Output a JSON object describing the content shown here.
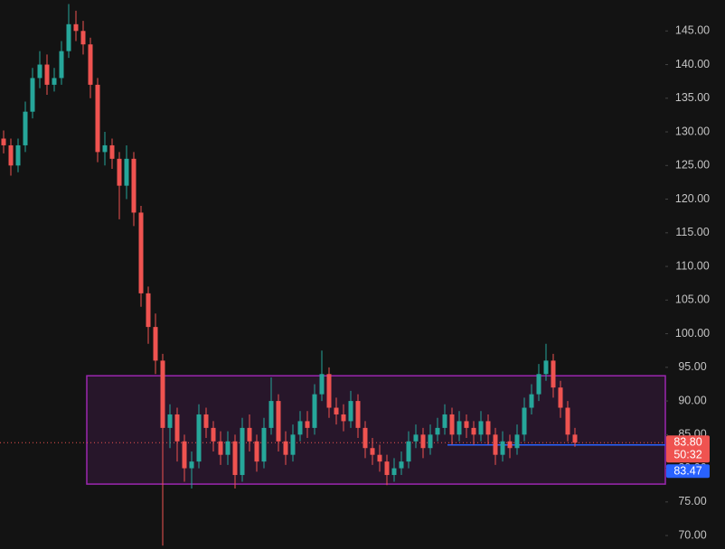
{
  "chart_data": {
    "type": "candlestick",
    "ylim": [
      68,
      149.6
    ],
    "yticks": [
      {
        "value": 70,
        "label": "70.00"
      },
      {
        "value": 75,
        "label": "75.00"
      },
      {
        "value": 80,
        "label": "80.00"
      },
      {
        "value": 85,
        "label": "85.00"
      },
      {
        "value": 90,
        "label": "90.00"
      },
      {
        "value": 95,
        "label": "95.00"
      },
      {
        "value": 100,
        "label": "100.00"
      },
      {
        "value": 105,
        "label": "105.00"
      },
      {
        "value": 110,
        "label": "110.00"
      },
      {
        "value": 115,
        "label": "115.00"
      },
      {
        "value": 120,
        "label": "120.00"
      },
      {
        "value": 125,
        "label": "125.00"
      },
      {
        "value": 130,
        "label": "130.00"
      },
      {
        "value": 135,
        "label": "135.00"
      },
      {
        "value": 140,
        "label": "140.00"
      },
      {
        "value": 145,
        "label": "145.00"
      }
    ],
    "up_color": "#26a69a",
    "down_color": "#ef5350",
    "open": [
      129,
      128,
      125,
      128,
      133,
      138,
      140,
      137,
      138,
      142,
      146,
      145,
      143,
      137,
      127,
      128,
      126,
      122,
      126,
      118,
      106,
      101,
      96,
      86,
      88,
      84,
      80,
      81,
      88,
      86,
      84,
      82,
      84,
      79,
      86,
      84,
      81,
      86,
      90,
      84,
      82,
      85,
      87,
      86,
      91,
      94,
      89,
      88,
      87,
      90,
      86,
      83,
      82,
      81,
      79,
      80,
      81,
      84,
      85,
      83,
      85,
      86,
      88,
      85,
      87,
      86,
      85,
      87,
      85,
      82,
      84,
      83,
      85,
      89,
      91,
      94,
      96,
      92,
      89,
      85
    ],
    "high": [
      130.2,
      129,
      129,
      134.5,
      139.5,
      142,
      141.5,
      139.5,
      143.5,
      149,
      148,
      146.5,
      144,
      138,
      130,
      129,
      127,
      128,
      127,
      119,
      107,
      103,
      97,
      89.5,
      89,
      85,
      82.5,
      89.5,
      89,
      87,
      85.5,
      85.5,
      85,
      87.5,
      88,
      85,
      87.5,
      93.5,
      91,
      85.5,
      86.5,
      88.5,
      88.5,
      92.5,
      97.5,
      95,
      90.5,
      89.5,
      91.5,
      91,
      87,
      84.5,
      83.5,
      82,
      81.5,
      82.5,
      85.5,
      86.5,
      86,
      86.5,
      87.5,
      89.5,
      89,
      88.5,
      88,
      87,
      88.5,
      88,
      86,
      85.5,
      85,
      86.5,
      90.5,
      92.5,
      95.5,
      98.5,
      97,
      93,
      90,
      86
    ],
    "low": [
      126.8,
      123.5,
      124,
      127,
      132,
      136.5,
      135.5,
      136,
      137,
      141,
      143.5,
      141.5,
      135,
      125.5,
      125,
      124.5,
      117,
      120,
      116,
      104,
      98.5,
      94,
      68.5,
      83,
      81,
      78,
      77,
      80,
      84.5,
      82.5,
      80.5,
      80.5,
      77,
      78,
      82.5,
      79.5,
      80,
      85,
      82.5,
      80.5,
      81,
      84,
      84.5,
      85,
      90,
      87.5,
      86.5,
      85.5,
      86,
      84.5,
      81.5,
      80.5,
      79.5,
      77.5,
      78,
      79,
      80,
      83,
      81.5,
      82,
      84,
      85,
      83.5,
      84,
      84.5,
      83.5,
      84,
      83.5,
      80.5,
      81,
      81.5,
      82,
      84,
      88,
      90,
      93,
      90.5,
      87.5,
      84,
      83.2
    ],
    "close": [
      128,
      125,
      128,
      133,
      138,
      140,
      137,
      138,
      142,
      146,
      145,
      143,
      137,
      127,
      128,
      126,
      122,
      126,
      118,
      106,
      101,
      96,
      86,
      88,
      84,
      80,
      81,
      88,
      86,
      84,
      82,
      84,
      79,
      86,
      84,
      81,
      86,
      90,
      84,
      82,
      85,
      87,
      86,
      91,
      94,
      89,
      88,
      87,
      90,
      86,
      83,
      82,
      81,
      79,
      80,
      81,
      84,
      85,
      83,
      85,
      86,
      88,
      85,
      87,
      86,
      85,
      87,
      85,
      82,
      84,
      83,
      85,
      89,
      91,
      94,
      96,
      92,
      89,
      85,
      83.8
    ],
    "range_box": {
      "top": 93.75,
      "bottom": 77.65,
      "color": "#9c27b0"
    },
    "last_price": {
      "value": 83.8,
      "label": "83.80"
    },
    "countdown": "50:32",
    "level_line": {
      "value": 83.47,
      "label": "83.47",
      "color": "#2962ff"
    }
  }
}
